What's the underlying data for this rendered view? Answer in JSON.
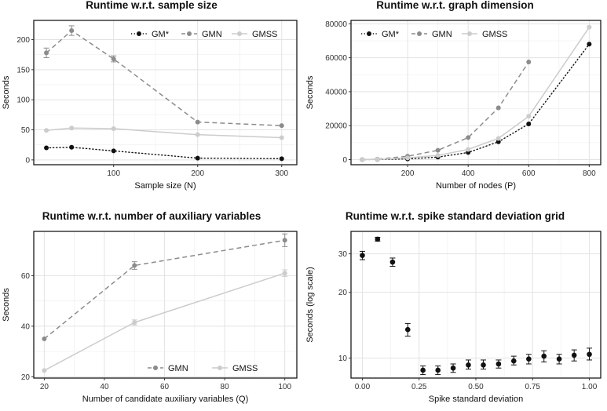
{
  "chart_data": [
    {
      "type": "line",
      "title": "Runtime w.r.t. sample size",
      "xlabel": "Sample size (N)",
      "ylabel": "Seconds",
      "xlim": [
        5,
        318
      ],
      "ylim": [
        -8,
        232
      ],
      "xticks": [
        100,
        200,
        300
      ],
      "yticks": [
        0,
        50,
        100,
        150,
        200
      ],
      "legend": "top-right",
      "series": [
        {
          "name": "GM*",
          "color": "#111111",
          "dash": "dotted",
          "x": [
            20,
            50,
            100,
            200,
            300
          ],
          "y": [
            20,
            21,
            15,
            3,
            2
          ],
          "err": [
            0,
            0,
            0,
            0,
            0
          ]
        },
        {
          "name": "GMN",
          "color": "#8c8c8c",
          "dash": "dashed",
          "x": [
            20,
            50,
            100,
            200,
            300
          ],
          "y": [
            178,
            215,
            168,
            63,
            57
          ],
          "err": [
            8,
            8,
            5,
            0,
            0
          ]
        },
        {
          "name": "GMSS",
          "color": "#cccccc",
          "dash": "solid",
          "x": [
            20,
            50,
            100,
            200,
            300
          ],
          "y": [
            49,
            53,
            52,
            42,
            37
          ],
          "err": [
            0,
            0,
            0,
            0,
            0
          ]
        }
      ]
    },
    {
      "type": "line",
      "title": "Runtime w.r.t. graph dimension",
      "xlabel": "Number of nodes (P)",
      "ylabel": "Seconds",
      "xlim": [
        13,
        838
      ],
      "ylim": [
        -3000,
        82000
      ],
      "xticks": [
        200,
        400,
        600,
        800
      ],
      "yticks": [
        0,
        20000,
        40000,
        60000,
        80000
      ],
      "legend": "top-left",
      "series": [
        {
          "name": "GM*",
          "color": "#111111",
          "dash": "dotted",
          "x": [
            50,
            100,
            200,
            300,
            400,
            500,
            600,
            800
          ],
          "y": [
            0,
            100,
            400,
            1500,
            4200,
            10500,
            21000,
            68000
          ],
          "err": [
            0,
            0,
            0,
            0,
            0,
            0,
            0,
            0
          ]
        },
        {
          "name": "GMN",
          "color": "#8c8c8c",
          "dash": "dashed",
          "x": [
            50,
            100,
            200,
            300,
            400,
            500,
            600
          ],
          "y": [
            0,
            300,
            2000,
            5500,
            13000,
            30500,
            57500
          ],
          "err": [
            0,
            0,
            0,
            0,
            0,
            0,
            0
          ]
        },
        {
          "name": "GMSS",
          "color": "#cccccc",
          "dash": "solid",
          "x": [
            50,
            100,
            200,
            300,
            400,
            500,
            600,
            800
          ],
          "y": [
            0,
            200,
            1000,
            2500,
            6000,
            12500,
            25500,
            78000
          ],
          "err": [
            0,
            0,
            0,
            0,
            0,
            0,
            0,
            0
          ]
        }
      ]
    },
    {
      "type": "line",
      "title": "Runtime w.r.t. number of auxiliary variables",
      "xlabel": "Number of candidate auxiliary variables (Q)",
      "ylabel": "Seconds",
      "xlim": [
        16.5,
        104
      ],
      "ylim": [
        19.5,
        77.5
      ],
      "xticks": [
        20,
        40,
        60,
        80,
        100
      ],
      "yticks": [
        20,
        40,
        60
      ],
      "legend": "bottom-right",
      "series": [
        {
          "name": "GMN",
          "color": "#8c8c8c",
          "dash": "dashed",
          "x": [
            20,
            50,
            100
          ],
          "y": [
            35,
            64,
            74
          ],
          "err": [
            0,
            1.5,
            2.5
          ]
        },
        {
          "name": "GMSS",
          "color": "#cccccc",
          "dash": "solid",
          "x": [
            20,
            50,
            100
          ],
          "y": [
            22.5,
            41.5,
            61
          ],
          "err": [
            0,
            1,
            1.3
          ]
        }
      ]
    },
    {
      "type": "scatter",
      "title": "Runtime w.r.t. spike standard deviation grid",
      "xlabel": "Spike standard deviation",
      "ylabel": "Seconds (log scale)",
      "yscale": "log",
      "xlim": [
        -0.05,
        1.05
      ],
      "ylim": [
        8.1,
        38
      ],
      "xticks": [
        0.0,
        0.25,
        0.5,
        0.75,
        1.0
      ],
      "xticklabels": [
        "0.00",
        "0.25",
        "0.50",
        "0.75",
        "1.00"
      ],
      "yticks": [
        10,
        20,
        30
      ],
      "series": [
        {
          "name": "runtime",
          "color": "#111111",
          "x": [
            0.0,
            0.067,
            0.133,
            0.2,
            0.267,
            0.333,
            0.4,
            0.467,
            0.533,
            0.6,
            0.667,
            0.733,
            0.8,
            0.867,
            0.933,
            1.0
          ],
          "y": [
            29.5,
            35.0,
            27.5,
            13.5,
            8.8,
            8.8,
            9.0,
            9.3,
            9.3,
            9.4,
            9.7,
            9.9,
            10.2,
            9.9,
            10.3,
            10.4
          ],
          "err_low": [
            28.2,
            34.3,
            26.3,
            12.6,
            8.4,
            8.4,
            8.6,
            8.9,
            8.9,
            9.0,
            9.3,
            9.4,
            9.6,
            9.4,
            9.7,
            9.8
          ],
          "err_high": [
            30.8,
            35.7,
            28.7,
            14.4,
            9.2,
            9.2,
            9.4,
            9.8,
            9.8,
            9.8,
            10.2,
            10.4,
            10.8,
            10.4,
            10.9,
            11.1
          ]
        }
      ]
    }
  ]
}
